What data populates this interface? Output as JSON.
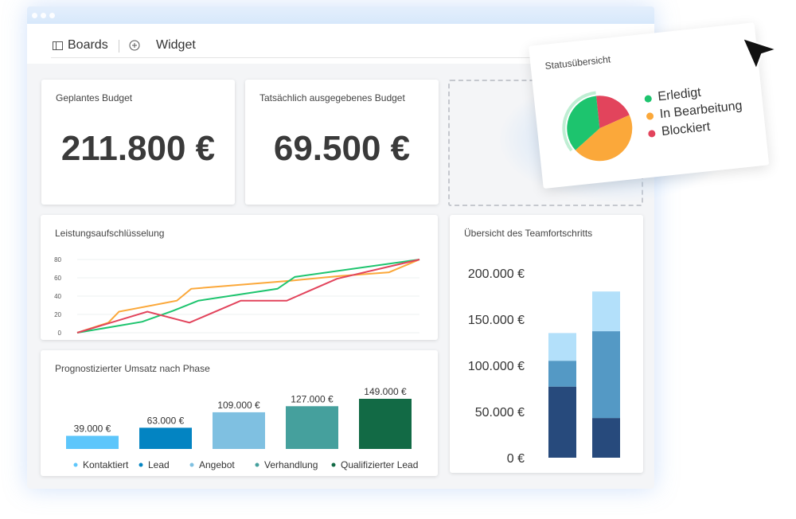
{
  "toolbar": {
    "boards": "Boards",
    "widget": "Widget"
  },
  "budget": {
    "title": "Geplantes Budget",
    "value": "211.800 €"
  },
  "spent": {
    "title": "Tatsächlich ausgegebenes Budget",
    "value": "69.500 €"
  },
  "status": {
    "title": "Statusübersicht",
    "items": [
      {
        "label": "Erledigt",
        "color": "#1dc46e",
        "share": 35
      },
      {
        "label": "In Bearbeitung",
        "color": "#fba83a",
        "share": 45
      },
      {
        "label": "Blockiert",
        "color": "#e2445c",
        "share": 20
      }
    ]
  },
  "chart_data": [
    {
      "type": "line",
      "title": "Leistungsaufschlüsselung",
      "ylim": [
        0,
        80
      ],
      "yticks": [
        "0",
        "20",
        "40",
        "60",
        "80"
      ],
      "series": [
        {
          "name": "orange",
          "color": "#fba83a",
          "points": [
            [
              0,
              0
            ],
            [
              9.1,
              11
            ],
            [
              12.2,
              23
            ],
            [
              29.1,
              35
            ],
            [
              33.3,
              48
            ],
            [
              62.8,
              57
            ],
            [
              76.7,
              62
            ],
            [
              91.1,
              66
            ],
            [
              100,
              80
            ]
          ]
        },
        {
          "name": "green",
          "color": "#1dc46e",
          "points": [
            [
              0,
              0
            ],
            [
              19,
              12
            ],
            [
              28,
              24
            ],
            [
              35.4,
              35
            ],
            [
              58.5,
              48
            ],
            [
              63.6,
              61
            ],
            [
              100,
              80
            ]
          ]
        },
        {
          "name": "red",
          "color": "#e2445c",
          "points": [
            [
              0,
              0
            ],
            [
              20.5,
              23
            ],
            [
              32.8,
              11
            ],
            [
              47.8,
              35
            ],
            [
              61.2,
              35
            ],
            [
              75.9,
              59
            ],
            [
              100,
              80
            ]
          ]
        }
      ]
    },
    {
      "type": "bar",
      "title": "Prognostizierter Umsatz nach Phase",
      "categories": [
        "Kontaktiert",
        "Lead",
        "Angebot",
        "Verhandlung",
        "Qualifizierter Lead"
      ],
      "values": [
        39000,
        63000,
        109000,
        127000,
        149000
      ],
      "labels": [
        "39.000 €",
        "63.000 €",
        "109.000 €",
        "127.000 €",
        "149.000 €"
      ],
      "colors": [
        "#5dc6fb",
        "#0384c2",
        "#7fc0e1",
        "#45a09d",
        "#126a45"
      ]
    },
    {
      "type": "bar",
      "stacked": true,
      "title": "Übersicht des Teamfortschritts",
      "ylim": [
        0,
        200000
      ],
      "yticks": [
        "0 €",
        "50.000 €",
        "100.000 €",
        "150.000 €",
        "200.000 €"
      ],
      "series": [
        {
          "color": "#274a7c",
          "values": [
            77000,
            43000
          ]
        },
        {
          "color": "#5499c5",
          "values": [
            28000,
            94000
          ]
        },
        {
          "color": "#b3e0fa",
          "values": [
            30000,
            43000
          ]
        }
      ]
    }
  ]
}
